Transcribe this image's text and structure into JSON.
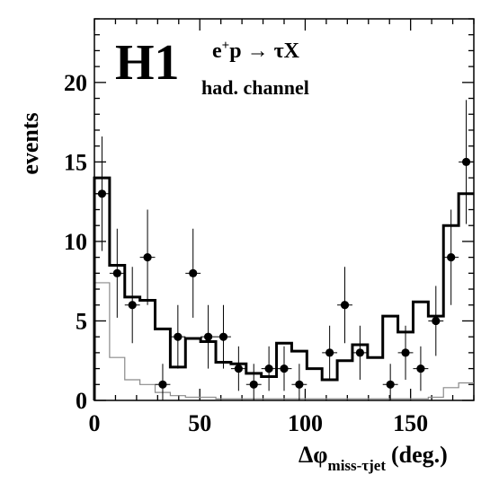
{
  "chart_data": {
    "type": "histogram-with-points",
    "logo": "H1",
    "process": {
      "lead": "e",
      "sup": "+",
      "rest": "p → τX"
    },
    "channel": "had. channel",
    "ylabel": "events",
    "xlabel": {
      "main": "Δφ",
      "sub": "miss-τjet",
      "unit": "(deg.)"
    },
    "xlim": [
      0,
      180
    ],
    "ylim": [
      0,
      24
    ],
    "x_ticks": [
      0,
      50,
      100,
      150
    ],
    "x_tick_labels": [
      "0",
      "50",
      "100",
      "150"
    ],
    "y_ticks": [
      0,
      5,
      10,
      15,
      20
    ],
    "y_tick_labels": [
      "0",
      "5",
      "10",
      "15",
      "20"
    ],
    "bin_edges": [
      0,
      7.2,
      14.4,
      21.6,
      28.8,
      36,
      43.2,
      50.4,
      57.6,
      64.8,
      72,
      79.2,
      86.4,
      93.6,
      100.8,
      108,
      115.2,
      122.4,
      129.6,
      136.8,
      144,
      151.2,
      158.4,
      165.6,
      172.8,
      180
    ],
    "prediction_total": [
      14,
      8.5,
      6.5,
      6.3,
      4.5,
      2.1,
      3.9,
      3.7,
      2.4,
      2.3,
      1.7,
      1.5,
      3.6,
      3.1,
      2.0,
      1.3,
      2.5,
      3.5,
      2.7,
      5.3,
      4.3,
      6.2,
      5.3,
      11,
      13
    ],
    "prediction_background": [
      7.4,
      2.7,
      1.3,
      1.0,
      0.5,
      0.3,
      0.2,
      0.2,
      0.1,
      0.1,
      0.1,
      0.1,
      0.1,
      0.1,
      0.1,
      0.1,
      0.1,
      0.1,
      0.1,
      0.1,
      0.1,
      0.1,
      0.2,
      0.8,
      1.1
    ],
    "data_points": [
      {
        "x": 3.6,
        "y": 13,
        "err": [
          3.6,
          3.6
        ]
      },
      {
        "x": 10.8,
        "y": 8,
        "err": [
          2.8,
          2.8
        ]
      },
      {
        "x": 18,
        "y": 6,
        "err": [
          2.4,
          2.4
        ]
      },
      {
        "x": 32.4,
        "y": 1,
        "err": [
          1.0,
          1.3
        ]
      },
      {
        "x": 25.2,
        "y": 9,
        "err": [
          3.0,
          3.0
        ]
      },
      {
        "x": 39.6,
        "y": 4,
        "err": [
          2.0,
          2.0
        ]
      },
      {
        "x": 46.8,
        "y": 8,
        "err": [
          2.8,
          2.8
        ]
      },
      {
        "x": 54,
        "y": 4,
        "err": [
          2.0,
          2.0
        ]
      },
      {
        "x": 61.2,
        "y": 4,
        "err": [
          2.0,
          2.0
        ]
      },
      {
        "x": 68.4,
        "y": 2,
        "err": [
          1.4,
          1.4
        ]
      },
      {
        "x": 75.6,
        "y": 1,
        "err": [
          1.0,
          1.3
        ]
      },
      {
        "x": 82.8,
        "y": 2,
        "err": [
          1.4,
          1.4
        ]
      },
      {
        "x": 90,
        "y": 2,
        "err": [
          1.4,
          1.4
        ]
      },
      {
        "x": 97.2,
        "y": 1,
        "err": [
          1.0,
          1.3
        ]
      },
      {
        "x": 111.6,
        "y": 3,
        "err": [
          1.7,
          1.7
        ]
      },
      {
        "x": 118.8,
        "y": 6,
        "err": [
          2.4,
          2.4
        ]
      },
      {
        "x": 126,
        "y": 3,
        "err": [
          1.7,
          1.7
        ]
      },
      {
        "x": 140.4,
        "y": 1,
        "err": [
          1.0,
          1.3
        ]
      },
      {
        "x": 147.6,
        "y": 3,
        "err": [
          1.7,
          1.7
        ]
      },
      {
        "x": 154.8,
        "y": 2,
        "err": [
          1.4,
          1.4
        ]
      },
      {
        "x": 162,
        "y": 5,
        "err": [
          2.2,
          2.2
        ]
      },
      {
        "x": 169.2,
        "y": 9,
        "err": [
          3.0,
          3.0
        ]
      },
      {
        "x": 176.4,
        "y": 15,
        "err": [
          3.9,
          3.9
        ]
      }
    ],
    "line_colors": {
      "total": "#000000",
      "background": "#8a8a8a",
      "points": "#000000"
    }
  }
}
